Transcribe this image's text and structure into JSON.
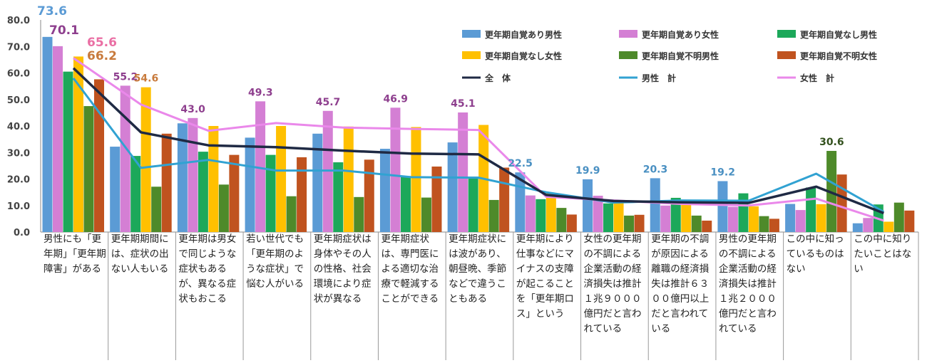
{
  "chart_data": {
    "type": "bar",
    "title": "",
    "xlabel": "",
    "ylabel": "",
    "ylim": [
      0,
      80
    ],
    "yticks": [
      "0.0",
      "10.0",
      "20.0",
      "30.0",
      "40.0",
      "50.0",
      "60.0",
      "70.0",
      "80.0"
    ],
    "grid": false,
    "legend_position": "top-right",
    "categories": [
      "男性にも「更年期」「更年期障害」がある",
      "更年期期間には、症状の出ない人もいる",
      "更年期は男女で同じような症状もあるが、異なる症状もおこる",
      "若い世代でも「更年期のような症状」で悩む人がいる",
      "更年期症状は身体やその人の性格、社会環境により症状が異なる",
      "更年期症状は、専門医による適切な治療で軽減することができる",
      "更年期症状には波があり、朝昼晩、季節などで違うこともある",
      "更年期により仕事などにマイナスの支障が起こることを「更年期ロス」という",
      "女性の更年期の不調による企業活動の経済損失は推計１兆９０００億円だと言われている",
      "更年期の不調が原因による離職の経済損失は推計６３００億円以上だと言われている",
      "男性の更年期の不調による企業活動の経済損失は推計１兆２０００億円だと言われている",
      "この中に知っているものはない",
      "この中に知りたいことはない"
    ],
    "series": [
      {
        "name": "更年期自覚あり男性",
        "kind": "bar",
        "color": "#5b9bd5",
        "values": [
          73.6,
          32.2,
          41.0,
          35.6,
          37.1,
          31.4,
          33.8,
          22.5,
          19.9,
          20.3,
          19.2,
          10.6,
          3.3
        ]
      },
      {
        "name": "更年期自覚あり女性",
        "kind": "bar",
        "color": "#d47fd4",
        "values": [
          70.1,
          55.2,
          43.0,
          49.3,
          45.7,
          46.9,
          45.1,
          13.8,
          13.7,
          10.0,
          9.5,
          8.3,
          5.3
        ]
      },
      {
        "name": "更年期自覚なし男性",
        "kind": "bar",
        "color": "#1ca85a",
        "values": [
          60.5,
          28.7,
          30.3,
          29.1,
          26.3,
          21.1,
          20.9,
          12.4,
          10.8,
          12.9,
          14.6,
          16.8,
          10.4
        ]
      },
      {
        "name": "更年期自覚なし女性",
        "kind": "bar",
        "color": "#ffc000",
        "values": [
          66.2,
          54.6,
          40.0,
          40.0,
          39.8,
          39.6,
          40.4,
          14.7,
          11.0,
          11.0,
          9.7,
          10.5,
          3.9
        ]
      },
      {
        "name": "更年期自覚不明男性",
        "kind": "bar",
        "color": "#4e8a2a",
        "values": [
          47.5,
          17.1,
          17.9,
          13.5,
          13.2,
          13.0,
          12.1,
          9.1,
          6.2,
          6.2,
          6.0,
          30.6,
          11.1
        ]
      },
      {
        "name": "更年期自覚不明女性",
        "kind": "bar",
        "color": "#c0531f",
        "values": [
          57.6,
          37.1,
          29.1,
          28.2,
          27.3,
          24.7,
          24.3,
          6.6,
          6.5,
          4.3,
          5.0,
          21.7,
          8.1
        ]
      },
      {
        "name": "全　体",
        "kind": "line",
        "color": "#1f2a44",
        "values": [
          61.8,
          37.6,
          32.7,
          32.0,
          30.7,
          29.6,
          29.3,
          14.0,
          11.7,
          11.2,
          11.0,
          17.1,
          7.1
        ]
      },
      {
        "name": "男性　計",
        "kind": "line",
        "color": "#31a2d2",
        "values": [
          58.0,
          24.2,
          27.2,
          23.2,
          23.2,
          20.7,
          20.5,
          15.0,
          11.1,
          11.9,
          11.8,
          22.0,
          7.6
        ]
      },
      {
        "name": "女性　計",
        "kind": "line",
        "color": "#ea88ea",
        "values": [
          65.6,
          48.1,
          38.2,
          41.1,
          39.4,
          38.9,
          38.5,
          13.3,
          11.9,
          10.6,
          10.0,
          12.6,
          4.3
        ]
      }
    ],
    "data_labels": [
      {
        "category": 0,
        "series": 0,
        "text": "73.6",
        "color": "#5b9bd5"
      },
      {
        "category": 0,
        "series": 1,
        "text": "70.1",
        "color": "#8e3f8e"
      },
      {
        "category": 0,
        "series": 8,
        "text": "65.6",
        "color": "#ea6fa4"
      },
      {
        "category": 0,
        "series": 3,
        "text": "66.2",
        "color": "#c87a3c"
      },
      {
        "category": 1,
        "series": 1,
        "text": "55.2",
        "color": "#8e3f8e"
      },
      {
        "category": 1,
        "series": 3,
        "text": "54.6",
        "color": "#c87a3c"
      },
      {
        "category": 2,
        "series": 1,
        "text": "43.0",
        "color": "#8e3f8e"
      },
      {
        "category": 3,
        "series": 1,
        "text": "49.3",
        "color": "#8e3f8e"
      },
      {
        "category": 4,
        "series": 1,
        "text": "45.7",
        "color": "#8e3f8e"
      },
      {
        "category": 5,
        "series": 1,
        "text": "46.9",
        "color": "#8e3f8e"
      },
      {
        "category": 6,
        "series": 1,
        "text": "45.1",
        "color": "#8e3f8e"
      },
      {
        "category": 7,
        "series": 0,
        "text": "22.5",
        "color": "#4a90c2"
      },
      {
        "category": 8,
        "series": 0,
        "text": "19.9",
        "color": "#4a90c2"
      },
      {
        "category": 9,
        "series": 0,
        "text": "20.3",
        "color": "#4a90c2"
      },
      {
        "category": 10,
        "series": 0,
        "text": "19.2",
        "color": "#4a90c2"
      },
      {
        "category": 11,
        "series": 4,
        "text": "30.6",
        "color": "#33511e"
      }
    ]
  }
}
